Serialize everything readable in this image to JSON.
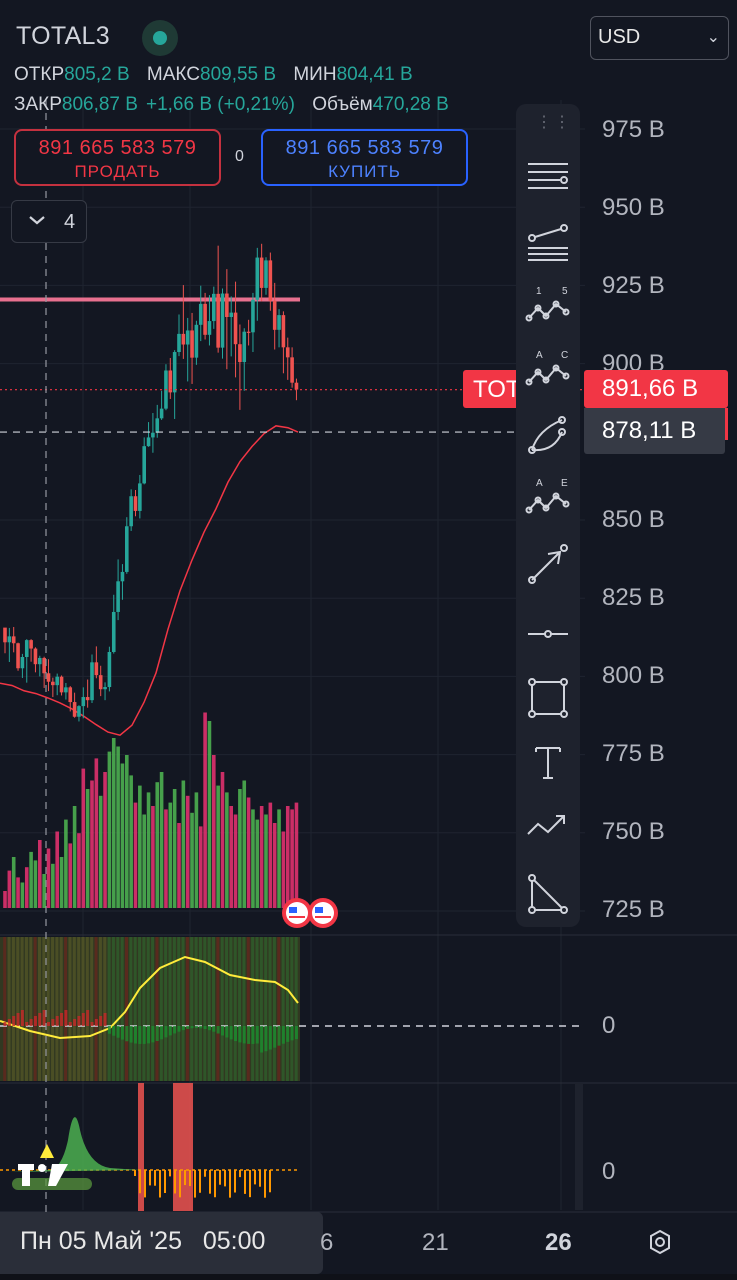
{
  "header": {
    "symbol": "TOTAL3",
    "currency": "USD",
    "ohlc": {
      "open_label": "ОТКР",
      "open_value": "805,2 B",
      "high_label": "МАКС",
      "high_value": "809,55 B",
      "low_label": "МИН",
      "low_value": "804,41 B",
      "close_label": "ЗАКР",
      "close_value": "806,87 B",
      "change": "+1,66 B (+0,21%)",
      "volume_label": "Объём",
      "volume_value": "470,28 B"
    }
  },
  "trade": {
    "sell_price": "891 665 583 579",
    "sell_label": "ПРОДАТЬ",
    "spread": "0",
    "buy_price": "891 665 583 579",
    "buy_label": "КУПИТЬ"
  },
  "indicators": {
    "collapsed_count": "4"
  },
  "price_axis": {
    "labels": [
      "975 B",
      "950 B",
      "925 B",
      "900 B",
      "850 B",
      "825 B",
      "800 B",
      "775 B",
      "750 B",
      "725 B"
    ],
    "last_price_tag": "891,66 B",
    "crosshair_price_tag": "878,11 B",
    "series_tag": "TOTAL3",
    "oscillator_zero_1": "0",
    "oscillator_zero_2": "0"
  },
  "time_axis": {
    "crosshair_label": "Пн 05 Май '25   05:00",
    "labels": [
      "21",
      "26"
    ],
    "partial_label": "6"
  },
  "colors": {
    "up": "#26a69a",
    "down": "#ef5350",
    "ma_line": "#f23645",
    "horizontal_level": "#e8708f",
    "oscillator_signal": "#ffeb3b",
    "background": "#131722"
  },
  "toolbar": {
    "icons": [
      "grip-icon",
      "horizontal-lines-icon",
      "parallel-channel-icon",
      "elliott-wave-12345-icon",
      "abcd-pattern-icon",
      "arc-icon",
      "abcde-pattern-icon",
      "arrow-icon",
      "horizontal-ray-icon",
      "rectangle-icon",
      "text-icon",
      "path-icon",
      "triangle-icon"
    ]
  },
  "chart_data": {
    "type": "candlestick",
    "symbol": "TOTAL3",
    "y_unit": "B USD",
    "ylim": [
      716,
      990
    ],
    "y_ticks": [
      975,
      950,
      925,
      900,
      850,
      825,
      800,
      775,
      750,
      725
    ],
    "last_price": 891.66,
    "crosshair_price": 878.11,
    "horizontal_level": 920.5,
    "candles": [
      [
        815.6,
        815.2,
        807.4,
        810.9
      ],
      [
        810.9,
        815.5,
        804.6,
        812.8
      ],
      [
        812.8,
        815.8,
        807.7,
        810.6
      ],
      [
        810.6,
        810.8,
        801.8,
        802.6
      ],
      [
        802.6,
        807.2,
        799.5,
        806.2
      ],
      [
        806.2,
        811.9,
        798.0,
        811.6
      ],
      [
        811.6,
        811.9,
        804.7,
        808.9
      ],
      [
        808.9,
        809.3,
        801.3,
        803.9
      ],
      [
        803.9,
        806.6,
        800.0,
        805.9
      ],
      [
        805.9,
        806.3,
        796.3,
        801.0
      ],
      [
        801.0,
        805.5,
        795.3,
        798.3
      ],
      [
        798.3,
        799.6,
        793.4,
        797.2
      ],
      [
        797.2,
        800.9,
        794.0,
        799.9
      ],
      [
        799.9,
        800.3,
        793.9,
        794.9
      ],
      [
        794.9,
        797.9,
        792.6,
        796.5
      ],
      [
        796.5,
        796.9,
        788.8,
        791.8
      ],
      [
        791.8,
        794.8,
        786.8,
        787.1
      ],
      [
        787.1,
        790.8,
        785.6,
        790.5
      ],
      [
        790.5,
        796.5,
        786.6,
        793.4
      ],
      [
        793.4,
        799.0,
        790.0,
        792.4
      ],
      [
        792.4,
        807.0,
        791.5,
        804.5
      ],
      [
        804.5,
        809.6,
        799.4,
        800.4
      ],
      [
        800.4,
        803.4,
        793.7,
        795.9
      ],
      [
        795.9,
        798.1,
        792.4,
        796.6
      ],
      [
        796.6,
        809.5,
        795.2,
        807.8
      ],
      [
        807.8,
        826.1,
        807.3,
        820.6
      ],
      [
        820.6,
        837.4,
        818.0,
        830.4
      ],
      [
        830.4,
        835.9,
        824.5,
        833.4
      ],
      [
        833.4,
        850.9,
        832.8,
        848.0
      ],
      [
        848.0,
        859.8,
        846.5,
        857.6
      ],
      [
        857.6,
        859.6,
        851.2,
        852.9
      ],
      [
        852.9,
        864.4,
        850.5,
        861.7
      ],
      [
        861.7,
        876.4,
        861.4,
        873.6
      ],
      [
        873.6,
        881.3,
        873.4,
        876.4
      ],
      [
        876.4,
        884.2,
        871.5,
        877.9
      ],
      [
        877.9,
        886.8,
        876.3,
        882.5
      ],
      [
        882.5,
        891.3,
        882.0,
        885.6
      ],
      [
        885.6,
        899.8,
        885.1,
        897.8
      ],
      [
        897.8,
        901.8,
        888.7,
        890.8
      ],
      [
        890.8,
        904.3,
        882.3,
        903.7
      ],
      [
        903.7,
        915.7,
        902.4,
        909.5
      ],
      [
        909.5,
        925.1,
        901.5,
        906.1
      ],
      [
        906.1,
        914.6,
        894.3,
        910.6
      ],
      [
        910.6,
        916.2,
        893.5,
        901.9
      ],
      [
        901.9,
        913.7,
        899.6,
        912.4
      ],
      [
        912.4,
        924.9,
        907.2,
        919.1
      ],
      [
        919.1,
        922.6,
        907.7,
        909.2
      ],
      [
        909.2,
        921.9,
        905.8,
        913.6
      ],
      [
        913.6,
        924.6,
        911.1,
        922.3
      ],
      [
        922.3,
        937.7,
        903.5,
        905.1
      ],
      [
        905.1,
        924.0,
        901.6,
        922.4
      ],
      [
        922.4,
        930.2,
        898.2,
        914.9
      ],
      [
        914.9,
        921.5,
        902.3,
        916.3
      ],
      [
        916.3,
        926.2,
        895.6,
        906.2
      ],
      [
        906.2,
        912.5,
        885.2,
        900.5
      ],
      [
        900.5,
        911.3,
        891.3,
        910.2
      ],
      [
        910.2,
        914.0,
        905.8,
        910.0
      ],
      [
        910.0,
        922.6,
        903.7,
        920.4
      ],
      [
        920.4,
        937.0,
        913.7,
        933.9
      ],
      [
        933.9,
        938.3,
        919.9,
        924.2
      ],
      [
        924.2,
        934.0,
        922.0,
        933.0
      ],
      [
        933.0,
        935.5,
        916.9,
        920.1
      ],
      [
        920.1,
        925.8,
        904.5,
        910.8
      ],
      [
        910.8,
        917.4,
        905.2,
        915.5
      ],
      [
        915.5,
        916.7,
        896.9,
        905.2
      ],
      [
        905.2,
        908.3,
        894.8,
        902.0
      ],
      [
        902.0,
        905.2,
        892.3,
        893.9
      ],
      [
        893.9,
        895.2,
        888.3,
        891.7
      ]
    ],
    "moving_average": {
      "color": "#f23645",
      "points": [
        [
          0,
          797.8
        ],
        [
          12,
          797.1
        ],
        [
          24,
          795.4
        ],
        [
          36,
          794.5
        ],
        [
          48,
          793.1
        ],
        [
          60,
          791.5
        ],
        [
          72,
          789.6
        ],
        [
          84,
          787.2
        ],
        [
          96,
          784.6
        ],
        [
          108,
          782.2
        ],
        [
          120,
          781.2
        ],
        [
          132,
          784.4
        ],
        [
          144,
          791.7
        ],
        [
          156,
          801.1
        ],
        [
          168,
          815.1
        ],
        [
          180,
          827.4
        ],
        [
          192,
          837.2
        ],
        [
          204,
          846.1
        ],
        [
          216,
          853.6
        ],
        [
          228,
          862.1
        ],
        [
          240,
          868.7
        ],
        [
          252,
          873.5
        ],
        [
          264,
          877.6
        ],
        [
          276,
          880.1
        ],
        [
          288,
          879.5
        ],
        [
          298,
          878.1
        ]
      ]
    },
    "volume": {
      "unit": "relative",
      "bars": [
        0.1,
        0.22,
        0.3,
        0.18,
        0.15,
        0.24,
        0.33,
        0.28,
        0.4,
        0.2,
        0.35,
        0.26,
        0.45,
        0.3,
        0.52,
        0.38,
        0.6,
        0.44,
        0.82,
        0.7,
        0.75,
        0.88,
        0.66,
        0.8,
        0.92,
        1.0,
        0.95,
        0.85,
        0.9,
        0.78,
        0.62,
        0.72,
        0.55,
        0.68,
        0.6,
        0.74,
        0.8,
        0.58,
        0.62,
        0.7,
        0.5,
        0.75,
        0.66,
        0.56,
        0.68,
        0.48,
        1.15,
        1.1,
        0.9,
        0.72,
        0.8,
        0.68,
        0.6,
        0.55,
        0.7,
        0.75,
        0.65,
        0.58,
        0.52,
        0.6,
        0.55,
        0.62,
        0.5,
        0.58,
        0.45,
        0.6,
        0.58,
        0.62
      ],
      "colors_up": [
        0,
        0,
        1,
        0,
        1,
        0,
        1,
        1,
        0,
        1,
        0,
        1,
        0,
        1,
        1,
        0,
        1,
        0,
        0,
        1,
        0,
        0,
        1,
        0,
        1,
        1,
        1,
        1,
        1,
        1,
        0,
        1,
        1,
        1,
        0,
        1,
        1,
        0,
        1,
        1,
        0,
        1,
        0,
        1,
        1,
        0,
        0,
        1,
        0,
        1,
        0,
        1,
        0,
        0,
        1,
        1,
        0,
        1,
        1,
        0,
        1,
        0,
        0,
        1,
        0,
        0,
        0,
        0
      ]
    }
  }
}
